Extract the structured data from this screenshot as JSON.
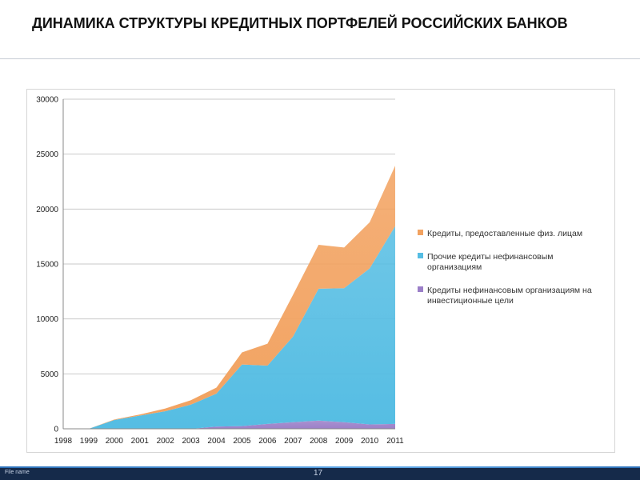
{
  "slide": {
    "title": "ДИНАМИКА СТРУКТУРЫ КРЕДИТНЫХ ПОРТФЕЛЕЙ РОССИЙСКИХ БАНКОВ"
  },
  "footer": {
    "file_name": "File name",
    "page_number": "17"
  },
  "chart_data": {
    "type": "area",
    "stacked": true,
    "x": [
      "1998",
      "1999",
      "2000",
      "2001",
      "2002",
      "2003",
      "2004",
      "2005",
      "2006",
      "2007",
      "2008",
      "2009",
      "2010",
      "2011"
    ],
    "ylim": [
      0,
      30000
    ],
    "yticks": [
      0,
      5000,
      10000,
      15000,
      20000,
      25000,
      30000
    ],
    "grid": true,
    "legend_position": "right",
    "series": [
      {
        "name": "Кредиты нефинансовым организациям на инвестиционные цели",
        "color": "#9b7fc8",
        "values": [
          0,
          0,
          0,
          0,
          0,
          0,
          200,
          250,
          450,
          600,
          750,
          600,
          400,
          450
        ]
      },
      {
        "name": "Прочие кредиты нефинансовым организациям",
        "color": "#55bde3",
        "values": [
          0,
          0,
          800,
          1200,
          1600,
          2200,
          3000,
          5600,
          5300,
          7800,
          12000,
          12200,
          14200,
          18000
        ]
      },
      {
        "name": "Кредиты, предоставленные физ. лицам",
        "color": "#f2a260",
        "values": [
          0,
          0,
          50,
          100,
          250,
          400,
          550,
          1100,
          2000,
          3800,
          4000,
          3700,
          4200,
          5500
        ]
      }
    ],
    "legend_order": [
      2,
      1,
      0
    ]
  }
}
